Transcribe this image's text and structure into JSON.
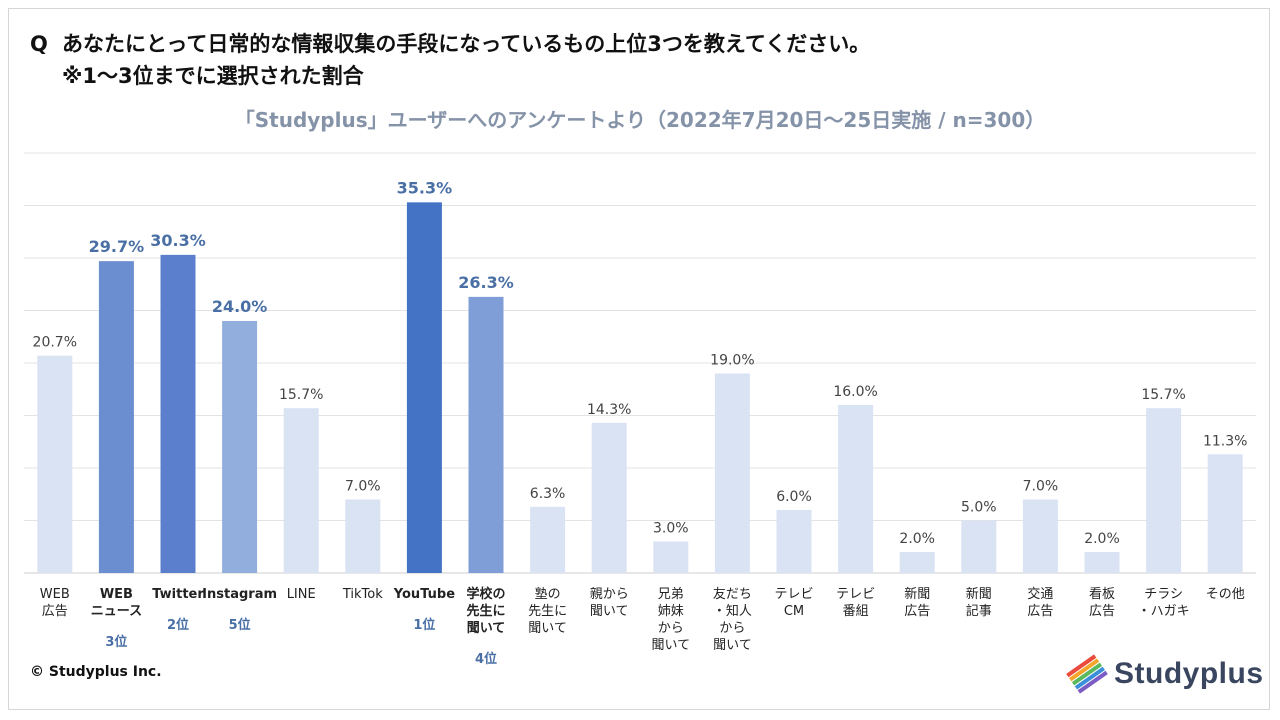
{
  "header": {
    "question_prefix": "Q",
    "question": "あなたにとって日常的な情報収集の手段になっているもの上位3つを教えてください。",
    "note": "※1〜3位までに選択された割合"
  },
  "subtitle": "「Studyplus」ユーザーへのアンケートより（2022年7月20日〜25日実施 / n=300）",
  "footer": {
    "copyright": "© Studyplus Inc.",
    "logo_text": "Studyplus",
    "logo_icon": "stacked-books-icon"
  },
  "colors": {
    "base": "#dae3f3",
    "rank1": "#4472c4",
    "rank2": "#5b7fcc",
    "rank3": "#6a8ed0",
    "rank4": "#7f9ed7",
    "rank5": "#92aedd",
    "rank_label": "#4a6fa5",
    "value_label": "#444444",
    "gridline": "#e3e3e3"
  },
  "chart_data": {
    "type": "bar",
    "title": "",
    "xlabel": "",
    "ylabel": "",
    "ylim": [
      0,
      40
    ],
    "grid": true,
    "value_suffix": "%",
    "categories": [
      "WEB\n広告",
      "WEB\nニュース",
      "Twitter",
      "Instagram",
      "LINE",
      "TikTok",
      "YouTube",
      "学校の\n先生に\n聞いて",
      "塾の\n先生に\n聞いて",
      "親から\n聞いて",
      "兄弟\n姉妹\nから\n聞いて",
      "友だち\n・知人\nから\n聞いて",
      "テレビ\nCM",
      "テレビ\n番組",
      "新聞\n広告",
      "新聞\n記事",
      "交通\n広告",
      "看板\n広告",
      "チラシ\n・ハガキ",
      "その他"
    ],
    "values": [
      20.7,
      29.7,
      30.3,
      24.0,
      15.7,
      7.0,
      35.3,
      26.3,
      6.3,
      14.3,
      3.0,
      19.0,
      6.0,
      16.0,
      2.0,
      5.0,
      7.0,
      2.0,
      15.7,
      11.3
    ],
    "value_labels": [
      "20.7%",
      "29.7%",
      "30.3%",
      "24.0%",
      "15.7%",
      "7.0%",
      "35.3%",
      "26.3%",
      "6.3%",
      "14.3%",
      "3.0%",
      "19.0%",
      "6.0%",
      "16.0%",
      "2.0%",
      "5.0%",
      "7.0%",
      "2.0%",
      "15.7%",
      "11.3%"
    ],
    "ranks": [
      null,
      3,
      2,
      5,
      null,
      null,
      1,
      4,
      null,
      null,
      null,
      null,
      null,
      null,
      null,
      null,
      null,
      null,
      null,
      null
    ],
    "rank_labels": [
      "",
      "3位",
      "2位",
      "5位",
      "",
      "",
      "1位",
      "4位",
      "",
      "",
      "",
      "",
      "",
      "",
      "",
      "",
      "",
      "",
      "",
      ""
    ]
  }
}
